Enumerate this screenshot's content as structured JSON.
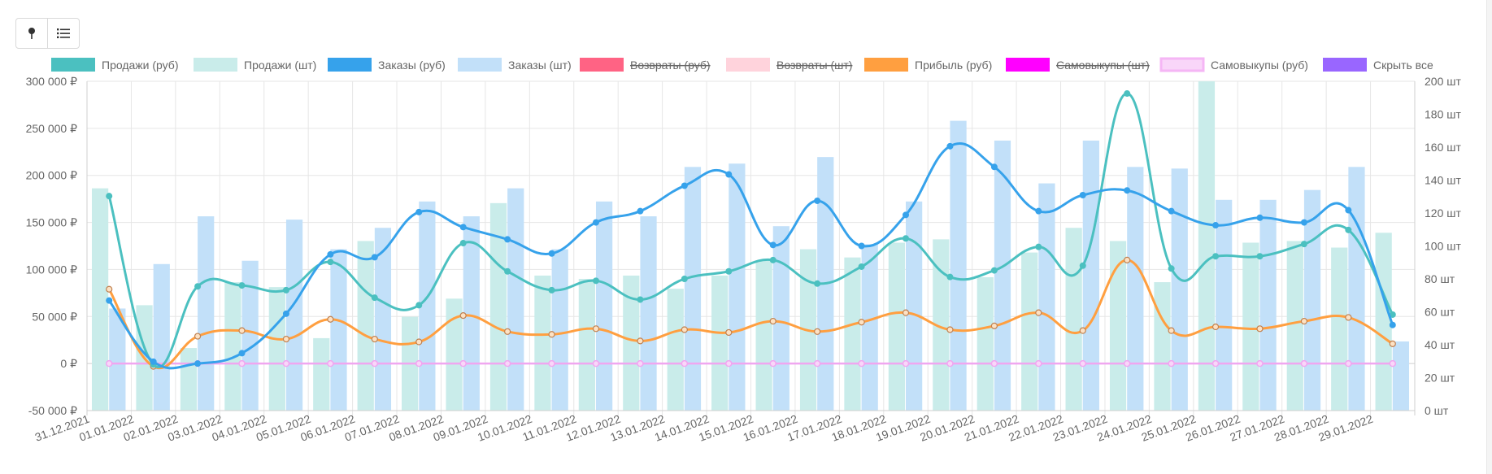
{
  "toolbar": {
    "pin_icon": "pin-icon",
    "list_icon": "list-icon"
  },
  "legend": [
    {
      "label": "Продажи (руб)",
      "color": "#4bc0c0",
      "struck": false,
      "style": "solid"
    },
    {
      "label": "Продажи (шт)",
      "color": "#c9ecea",
      "struck": false,
      "style": "solid"
    },
    {
      "label": "Заказы (руб)",
      "color": "#36a2eb",
      "struck": false,
      "style": "solid"
    },
    {
      "label": "Заказы (шт)",
      "color": "#c2e0f9",
      "struck": false,
      "style": "solid"
    },
    {
      "label": "Возвраты (руб)",
      "color": "#ff6384",
      "struck": true,
      "style": "solid"
    },
    {
      "label": "Возвраты (шт)",
      "color": "#ffd3dc",
      "struck": true,
      "style": "solid"
    },
    {
      "label": "Прибыль (руб)",
      "color": "#ff9f40",
      "struck": false,
      "style": "solid"
    },
    {
      "label": "Самовыкупы (шт)",
      "color": "#ff00ff",
      "struck": true,
      "style": "solid"
    },
    {
      "label": "Самовыкупы (руб)",
      "color": "#f5b6f5",
      "struck": false,
      "style": "outline"
    },
    {
      "label": "Скрыть все",
      "color": "#9966ff",
      "struck": false,
      "style": "solid"
    }
  ],
  "chart_data": {
    "type": "bar",
    "x": [
      "31.12.2021",
      "01.01.2022",
      "02.01.2022",
      "03.01.2022",
      "04.01.2022",
      "05.01.2022",
      "06.01.2022",
      "07.01.2022",
      "08.01.2022",
      "09.01.2022",
      "10.01.2022",
      "11.01.2022",
      "12.01.2022",
      "13.01.2022",
      "14.01.2022",
      "15.01.2022",
      "16.01.2022",
      "17.01.2022",
      "18.01.2022",
      "19.01.2022",
      "20.01.2022",
      "21.01.2022",
      "22.01.2022",
      "23.01.2022",
      "24.01.2022",
      "25.01.2022",
      "26.01.2022",
      "27.01.2022",
      "28.01.2022",
      "29.01.2022"
    ],
    "y_left": {
      "min": -50000,
      "max": 300000,
      "step": 50000,
      "unit": "₽",
      "ticks": [
        "-50 000 ₽",
        "0 ₽",
        "50 000 ₽",
        "100 000 ₽",
        "150 000 ₽",
        "200 000 ₽",
        "250 000 ₽",
        "300 000 ₽"
      ]
    },
    "y_right": {
      "min": 0,
      "max": 200,
      "step": 20,
      "unit": "шт",
      "ticks": [
        "0 шт",
        "20 шт",
        "40 шт",
        "60 шт",
        "80 шт",
        "100 шт",
        "120 шт",
        "140 шт",
        "160 шт",
        "180 шт",
        "200 шт"
      ]
    },
    "grid": true,
    "legend_position": "top",
    "bar_series": [
      {
        "name": "Продажи (шт)",
        "axis": "right",
        "color": "#c9ecea",
        "values": [
          135,
          64,
          38,
          78,
          75,
          44,
          103,
          57,
          68,
          126,
          82,
          80,
          82,
          74,
          82,
          91,
          98,
          93,
          102,
          104,
          81,
          96,
          111,
          103,
          78,
          200,
          102,
          103,
          99,
          108
        ]
      },
      {
        "name": "Заказы (шт)",
        "axis": "right",
        "color": "#c2e0f9",
        "values": [
          62,
          89,
          118,
          91,
          116,
          98,
          111,
          127,
          118,
          135,
          98,
          127,
          118,
          148,
          150,
          112,
          154,
          101,
          127,
          176,
          164,
          138,
          164,
          148,
          147,
          128,
          128,
          134,
          148,
          42
        ]
      }
    ],
    "line_series": [
      {
        "name": "Продажи (руб)",
        "axis": "left",
        "color": "#4bc0c0",
        "values": [
          178000,
          -1000,
          82000,
          83000,
          78000,
          108000,
          70000,
          62000,
          128000,
          98000,
          78000,
          88000,
          68000,
          90000,
          98000,
          110000,
          85000,
          103000,
          133000,
          92000,
          99000,
          124000,
          104000,
          287000,
          101000,
          114000,
          114000,
          127000,
          142000,
          52000
        ]
      },
      {
        "name": "Заказы (руб)",
        "axis": "left",
        "color": "#36a2eb",
        "values": [
          67000,
          2000,
          0,
          11000,
          53000,
          116000,
          113000,
          161000,
          145000,
          132000,
          117000,
          150000,
          162000,
          189000,
          201000,
          126000,
          173000,
          125000,
          158000,
          231000,
          209000,
          162000,
          179000,
          184000,
          162000,
          147000,
          155000,
          150000,
          163000,
          41000
        ]
      },
      {
        "name": "Прибыль (руб)",
        "axis": "left",
        "color": "#ff9f40",
        "values": [
          79000,
          -3000,
          29000,
          35000,
          26000,
          47000,
          26000,
          23000,
          51000,
          34000,
          31000,
          37000,
          24000,
          36000,
          33000,
          45000,
          34000,
          44000,
          54000,
          36000,
          40000,
          54000,
          35000,
          110000,
          35000,
          39000,
          37000,
          45000,
          49000,
          21000
        ]
      },
      {
        "name": "Самовыкупы (руб)",
        "axis": "left",
        "color": "#f0a6f0",
        "values": [
          0,
          0,
          0,
          0,
          0,
          0,
          0,
          0,
          0,
          0,
          0,
          0,
          0,
          0,
          0,
          0,
          0,
          0,
          0,
          0,
          0,
          0,
          0,
          0,
          0,
          0,
          0,
          0,
          0,
          0
        ]
      }
    ]
  }
}
